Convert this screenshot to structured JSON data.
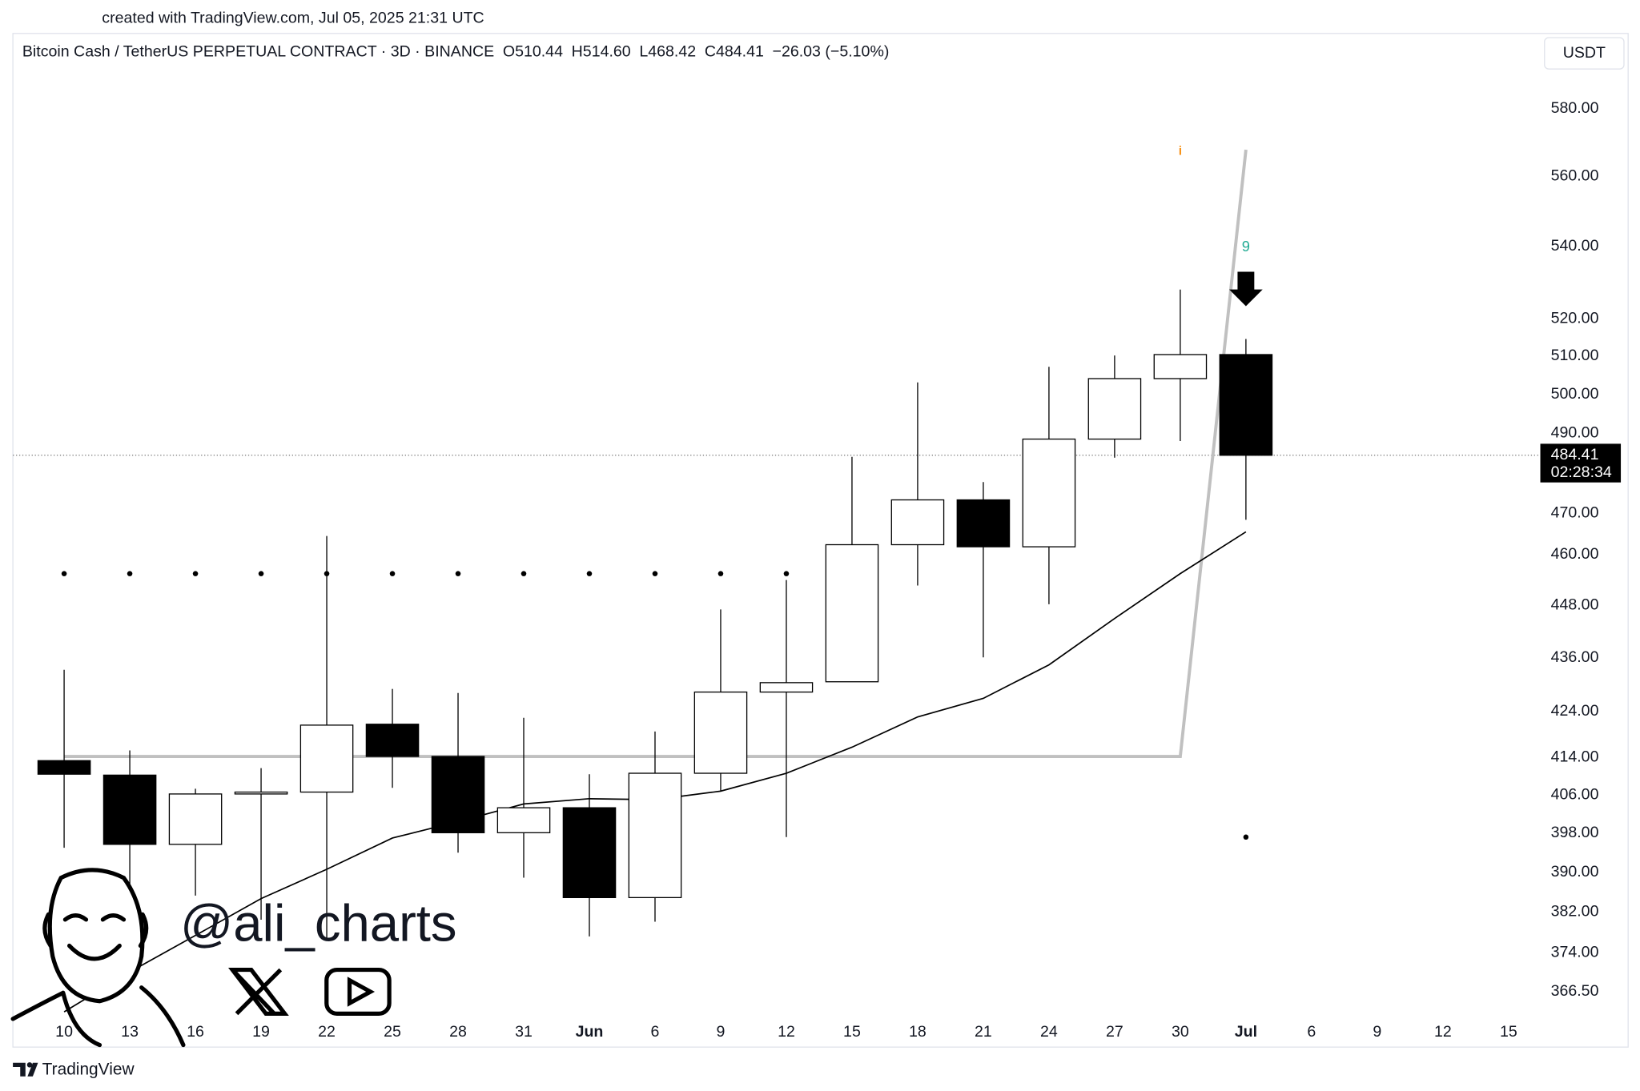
{
  "chart_data": {
    "type": "candlestick",
    "attribution": "created with TradingView.com, Jul 05, 2025 21:31 UTC",
    "symbol": "Bitcoin Cash / TetherUS PERPETUAL CONTRACT · 3D · BINANCE",
    "ohlc_header": [
      "O510.44",
      "H514.60",
      "L468.42",
      "C484.41",
      "−26.03 (−5.10%)"
    ],
    "currency": "USDT",
    "categories": [
      "10",
      "13",
      "16",
      "19",
      "22",
      "25",
      "28",
      "31",
      "Jun",
      "6",
      "9",
      "12",
      "15",
      "18",
      "21",
      "24",
      "27",
      "30",
      "Jul",
      "6",
      "9",
      "12",
      "15"
    ],
    "open": [
      413.3,
      410.2,
      395.7,
      406.2,
      406.6,
      421.2,
      414.2,
      398.1,
      403.3,
      384.9,
      410.6,
      428.3,
      430.6,
      462.4,
      473.3,
      461.9,
      488.5,
      504.1,
      510.44,
      null,
      null,
      null,
      null
    ],
    "high": [
      433.3,
      415.5,
      407.3,
      411.7,
      464.5,
      429.0,
      428.1,
      422.6,
      410.4,
      419.6,
      447.1,
      454.0,
      484.0,
      503.1,
      477.7,
      507.2,
      510.2,
      528.0,
      514.6,
      null,
      null,
      null,
      null
    ],
    "low": [
      395.0,
      382.6,
      385.3,
      380.5,
      376.4,
      407.5,
      394.0,
      388.9,
      377.2,
      380.1,
      406.9,
      397.2,
      430.6,
      452.7,
      436.1,
      448.3,
      483.8,
      488.0,
      468.42,
      null,
      null,
      null,
      null
    ],
    "close": [
      410.4,
      395.7,
      406.2,
      406.6,
      421.0,
      414.2,
      398.1,
      403.3,
      384.9,
      410.6,
      428.3,
      430.4,
      462.4,
      473.3,
      461.9,
      488.5,
      504.1,
      510.44,
      484.41,
      null,
      null,
      null,
      null
    ],
    "up_color": "#ffffff",
    "down_color": "#000000",
    "series": [
      {
        "color": "#000000",
        "values": [
          362.7,
          370.3,
          377.4,
          384.7,
          390.6,
          397.0,
          400.4,
          404.1,
          405.2,
          405.0,
          406.8,
          410.6,
          416.2,
          422.8,
          426.9,
          434.4,
          445.0,
          455.5,
          465.5,
          null,
          null,
          null,
          null
        ]
      },
      {
        "color": "#c0c0c0",
        "values": [
          414.2,
          414.2,
          414.2,
          414.2,
          414.2,
          414.2,
          414.2,
          414.2,
          414.2,
          414.2,
          414.2,
          414.2,
          414.2,
          414.2,
          414.2,
          414.2,
          414.2,
          414.2,
          567.8,
          null,
          null,
          null,
          null
        ]
      }
    ],
    "dots": [
      455.5,
      455.5,
      455.5,
      455.5,
      455.5,
      455.5,
      455.5,
      455.5,
      455.5,
      455.5,
      455.5,
      455.5,
      null,
      null,
      null,
      null,
      null,
      null,
      397.2,
      null,
      null,
      null,
      null
    ],
    "signal_labels": [
      null,
      null,
      null,
      null,
      null,
      null,
      null,
      null,
      null,
      null,
      null,
      null,
      null,
      null,
      null,
      null,
      null,
      null,
      "9",
      null,
      null,
      null,
      null
    ],
    "info_marks": [
      null,
      null,
      null,
      null,
      null,
      null,
      null,
      null,
      null,
      null,
      null,
      null,
      null,
      null,
      null,
      null,
      null,
      "i",
      null,
      null,
      null,
      null,
      null
    ],
    "ylim": [
      356.5,
      602.2
    ],
    "yticks": [
      {
        "value": 366.5,
        "label": "366.50"
      },
      {
        "value": 374,
        "label": "374.00"
      },
      {
        "value": 382,
        "label": "382.00"
      },
      {
        "value": 390,
        "label": "390.00"
      },
      {
        "value": 398,
        "label": "398.00"
      },
      {
        "value": 406,
        "label": "406.00"
      },
      {
        "value": 414,
        "label": "414.00"
      },
      {
        "value": 424,
        "label": "424.00"
      },
      {
        "value": 436,
        "label": "436.00"
      },
      {
        "value": 448,
        "label": "448.00"
      },
      {
        "value": 460,
        "label": "460.00"
      },
      {
        "value": 470,
        "label": "470.00"
      },
      {
        "value": 490,
        "label": "490.00"
      },
      {
        "value": 500,
        "label": "500.00"
      },
      {
        "value": 510,
        "label": "510.00"
      },
      {
        "value": 520,
        "label": "520.00"
      },
      {
        "value": 540,
        "label": "540.00"
      },
      {
        "value": 560,
        "label": "560.00"
      },
      {
        "value": 580,
        "label": "580.00"
      }
    ],
    "log_scale": true,
    "grid": false,
    "last_price": {
      "value": 484.41,
      "label": "484.41"
    },
    "countdown": "02:28:34",
    "watermark": "@ali_charts",
    "brand": "TradingView"
  }
}
